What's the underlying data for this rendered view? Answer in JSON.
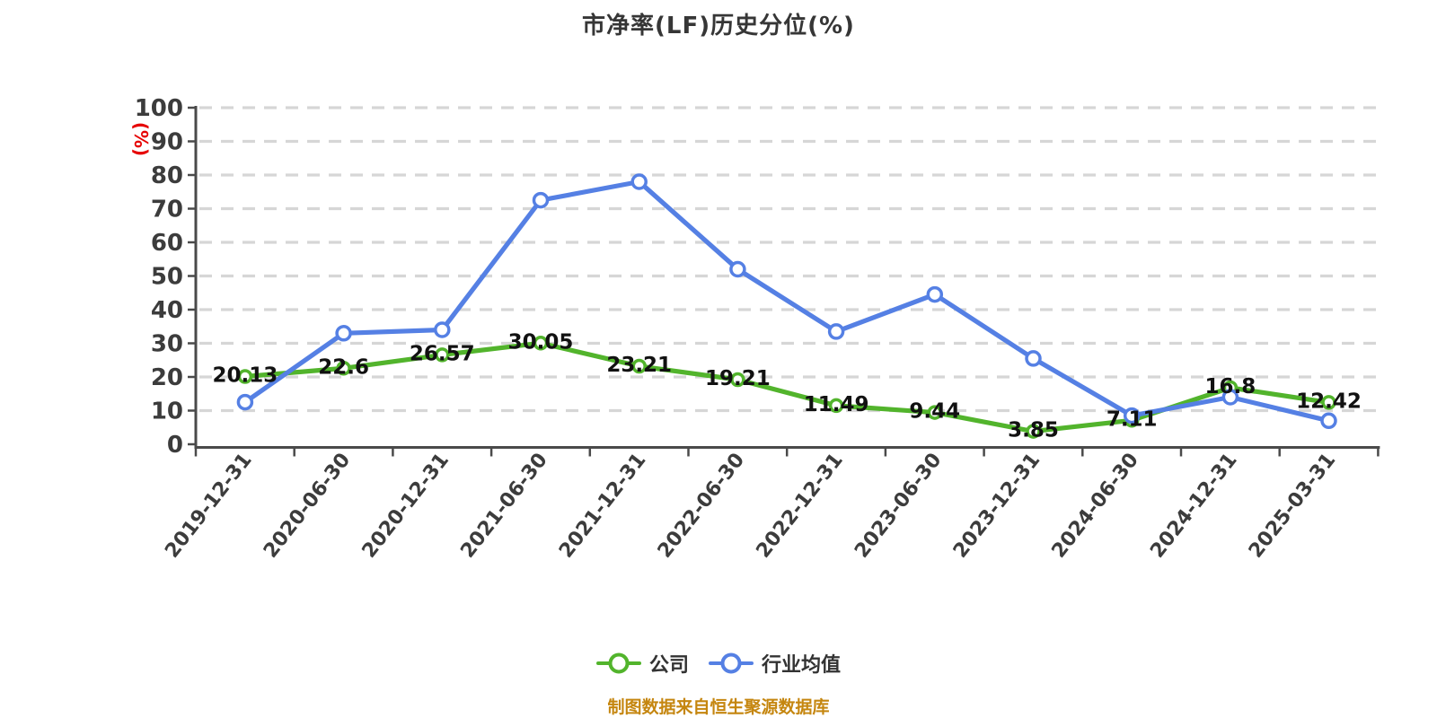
{
  "title": "市净率(LF)历史分位(%)",
  "y_axis_unit": "(%)",
  "source_note": "制图数据来自恒生聚源数据库",
  "colors": {
    "company": "#52b42c",
    "industry": "#5580e4",
    "grid": "#d6d6d6",
    "axis": "#4a4a4a",
    "tick_text": "#3c3c3c",
    "data_label": "#111111",
    "title_text": "#363636",
    "unit_text": "#e60000",
    "source_text": "#c5860f",
    "point_fill": "#ffffff"
  },
  "chart_data": {
    "type": "line",
    "title": "市净率(LF)历史分位(%)",
    "ylabel": "(%)",
    "ylim": [
      0,
      100
    ],
    "y_ticks": [
      0,
      10,
      20,
      30,
      40,
      50,
      60,
      70,
      80,
      90,
      100
    ],
    "grid": "horizontal-dashed",
    "legend_position": "bottom",
    "categories": [
      "2019-12-31",
      "2020-06-30",
      "2020-12-31",
      "2021-06-30",
      "2021-12-31",
      "2022-06-30",
      "2022-12-31",
      "2023-06-30",
      "2023-12-31",
      "2024-06-30",
      "2024-12-31",
      "2025-03-31"
    ],
    "series": [
      {
        "id": "company",
        "name": "公司",
        "color": "#52b42c",
        "values": [
          20.13,
          22.6,
          26.57,
          30.05,
          23.21,
          19.21,
          11.49,
          9.44,
          3.85,
          7.11,
          16.8,
          12.42
        ],
        "point_labels": [
          "20.13",
          "22.6",
          "26.57",
          "30.05",
          "23.21",
          "19.21",
          "11.49",
          "9.44",
          "3.85",
          "7.11",
          "16.8",
          "12.42"
        ],
        "labels_visible": true
      },
      {
        "id": "industry-average",
        "name": "行业均值",
        "color": "#5580e4",
        "values": [
          12.5,
          33,
          34,
          72.5,
          78,
          52,
          33.5,
          44.5,
          25.5,
          8.5,
          14,
          7
        ],
        "labels_visible": false
      }
    ]
  }
}
